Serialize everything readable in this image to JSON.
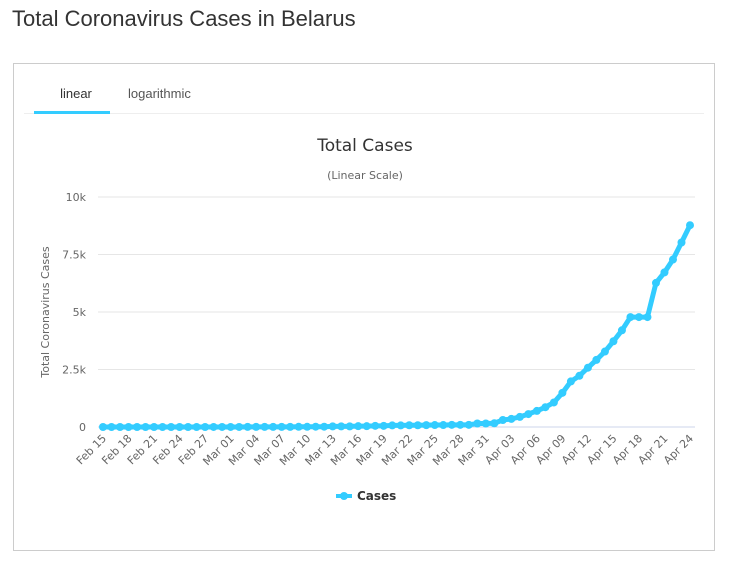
{
  "page_title": "Total Coronavirus Cases in Belarus",
  "tabs": [
    {
      "label": "linear",
      "active": true
    },
    {
      "label": "logarithmic",
      "active": false
    }
  ],
  "colors": {
    "accent": "#33ccff",
    "series": "#33ccff"
  },
  "chart_data": {
    "type": "line",
    "title": "Total Cases",
    "subtitle": "(Linear Scale)",
    "ylabel": "Total Coronavirus Cases",
    "xlabel": "",
    "ylim": [
      0,
      10000
    ],
    "yticks": [
      0,
      2500,
      5000,
      7500,
      10000
    ],
    "ytick_labels": [
      "0",
      "2.5k",
      "5k",
      "7.5k",
      "10k"
    ],
    "grid": true,
    "legend": "bottom",
    "xtick_labels": [
      "Feb 15",
      "Feb 18",
      "Feb 21",
      "Feb 24",
      "Feb 27",
      "Mar 01",
      "Mar 04",
      "Mar 07",
      "Mar 10",
      "Mar 13",
      "Mar 16",
      "Mar 19",
      "Mar 22",
      "Mar 25",
      "Mar 28",
      "Mar 31",
      "Apr 03",
      "Apr 06",
      "Apr 09",
      "Apr 12",
      "Apr 15",
      "Apr 18",
      "Apr 21",
      "Apr 24"
    ],
    "x": [
      "Feb 15",
      "Feb 16",
      "Feb 17",
      "Feb 18",
      "Feb 19",
      "Feb 20",
      "Feb 21",
      "Feb 22",
      "Feb 23",
      "Feb 24",
      "Feb 25",
      "Feb 26",
      "Feb 27",
      "Feb 28",
      "Feb 29",
      "Mar 01",
      "Mar 02",
      "Mar 03",
      "Mar 04",
      "Mar 05",
      "Mar 06",
      "Mar 07",
      "Mar 08",
      "Mar 09",
      "Mar 10",
      "Mar 11",
      "Mar 12",
      "Mar 13",
      "Mar 14",
      "Mar 15",
      "Mar 16",
      "Mar 17",
      "Mar 18",
      "Mar 19",
      "Mar 20",
      "Mar 21",
      "Mar 22",
      "Mar 23",
      "Mar 24",
      "Mar 25",
      "Mar 26",
      "Mar 27",
      "Mar 28",
      "Mar 29",
      "Mar 30",
      "Mar 31",
      "Apr 01",
      "Apr 02",
      "Apr 03",
      "Apr 04",
      "Apr 05",
      "Apr 06",
      "Apr 07",
      "Apr 08",
      "Apr 09",
      "Apr 10",
      "Apr 11",
      "Apr 12",
      "Apr 13",
      "Apr 14",
      "Apr 15",
      "Apr 16",
      "Apr 17",
      "Apr 18",
      "Apr 19",
      "Apr 20",
      "Apr 21",
      "Apr 22",
      "Apr 23",
      "Apr 24"
    ],
    "series": [
      {
        "name": "Cases",
        "values": [
          0,
          0,
          0,
          0,
          0,
          0,
          0,
          0,
          0,
          0,
          0,
          0,
          0,
          1,
          1,
          1,
          1,
          6,
          6,
          6,
          6,
          6,
          6,
          9,
          9,
          12,
          12,
          27,
          27,
          27,
          36,
          36,
          51,
          51,
          69,
          69,
          76,
          76,
          81,
          86,
          86,
          94,
          94,
          94,
          152,
          152,
          163,
          304,
          351,
          440,
          562,
          700,
          861,
          1066,
          1486,
          1981,
          2226,
          2578,
          2919,
          3281,
          3728,
          4204,
          4779,
          4779,
          4779,
          6264,
          6723,
          7281,
          8022,
          8773
        ]
      }
    ]
  }
}
